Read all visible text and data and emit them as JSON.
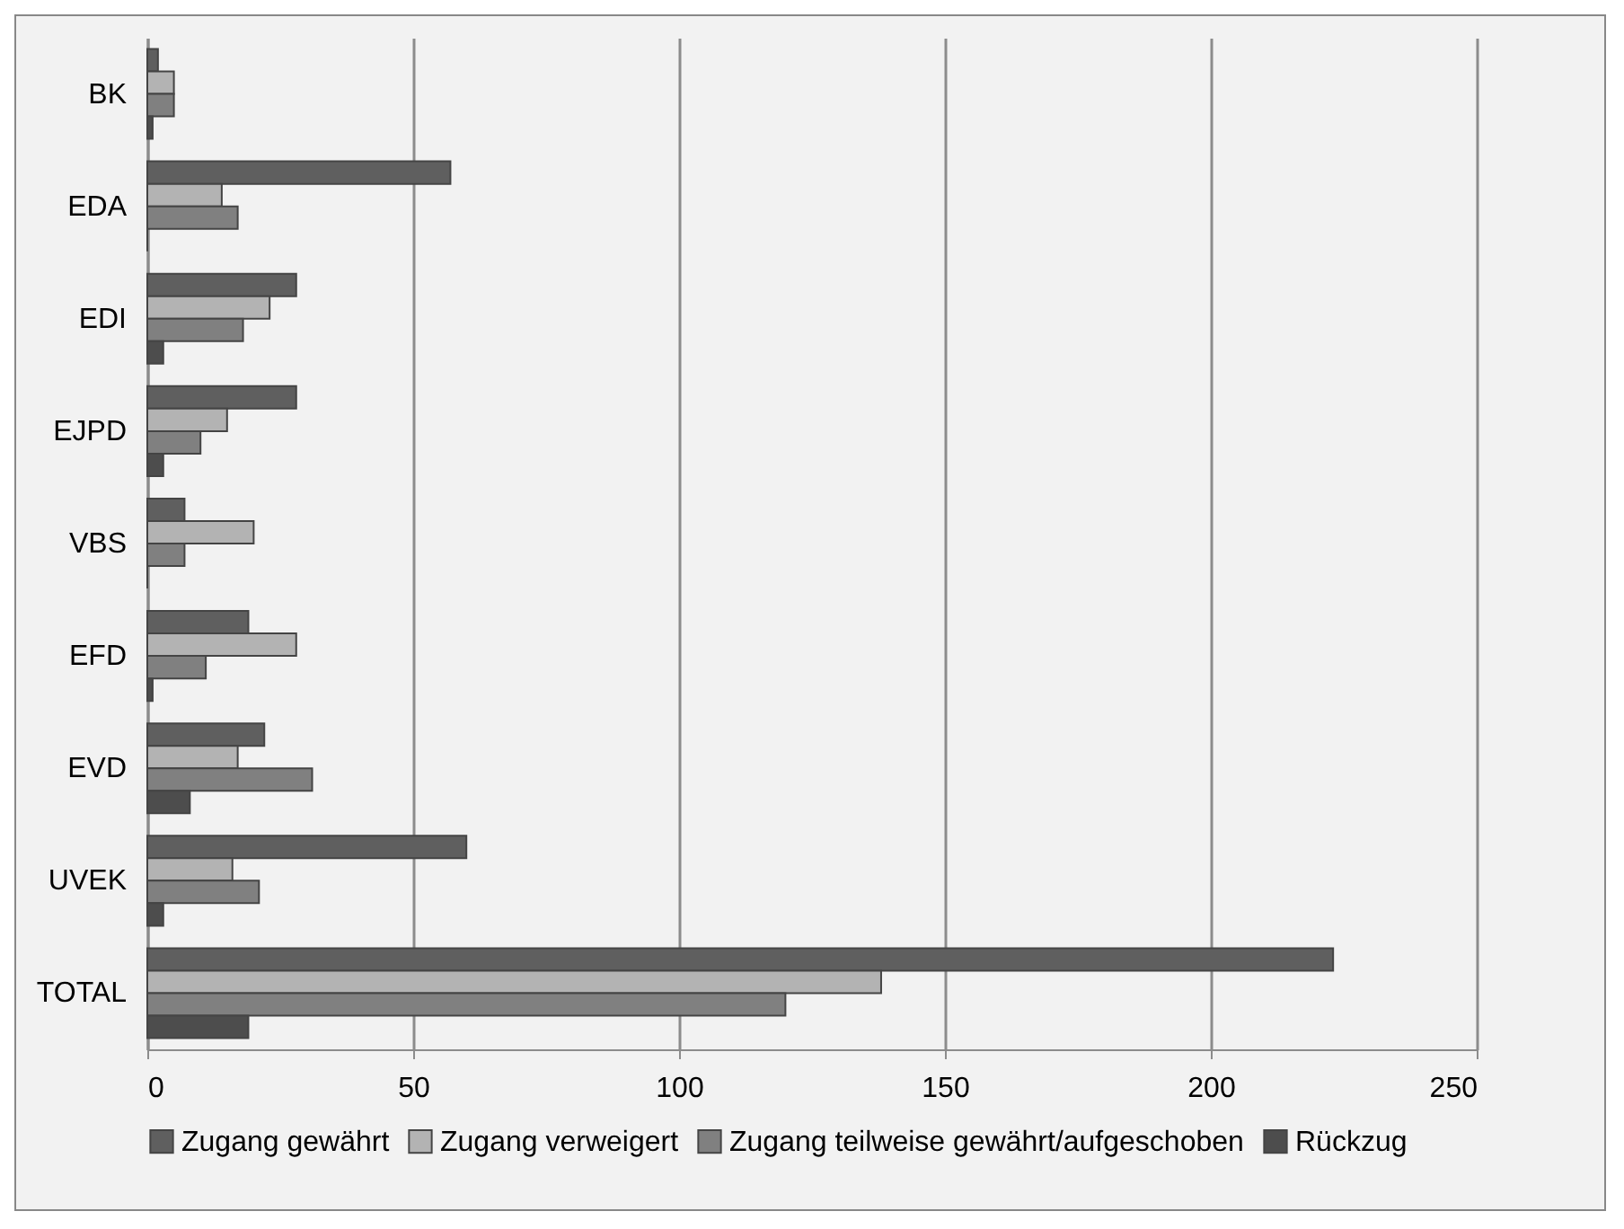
{
  "chart_data": {
    "type": "bar",
    "orientation": "horizontal",
    "categories": [
      "BK",
      "EDA",
      "EDI",
      "EJPD",
      "VBS",
      "EFD",
      "EVD",
      "UVEK",
      "TOTAL"
    ],
    "series": [
      {
        "name": "Zugang gewährt",
        "color": "#5f5f5f",
        "values": [
          2,
          57,
          28,
          28,
          7,
          19,
          22,
          60,
          223
        ]
      },
      {
        "name": "Zugang verweigert",
        "color": "#b3b3b3",
        "values": [
          5,
          14,
          23,
          15,
          20,
          28,
          17,
          16,
          138
        ]
      },
      {
        "name": "Zugang teilweise gewährt/aufgeschoben",
        "color": "#808080",
        "values": [
          5,
          17,
          18,
          10,
          7,
          11,
          31,
          21,
          120
        ]
      },
      {
        "name": "Rückzug",
        "color": "#4d4d4d",
        "values": [
          1,
          0,
          3,
          3,
          0,
          1,
          8,
          3,
          19
        ]
      }
    ],
    "xlim": [
      0,
      250
    ],
    "xticks": [
      0,
      50,
      100,
      150,
      200,
      250
    ],
    "grid": "x",
    "legend": "bottom"
  }
}
